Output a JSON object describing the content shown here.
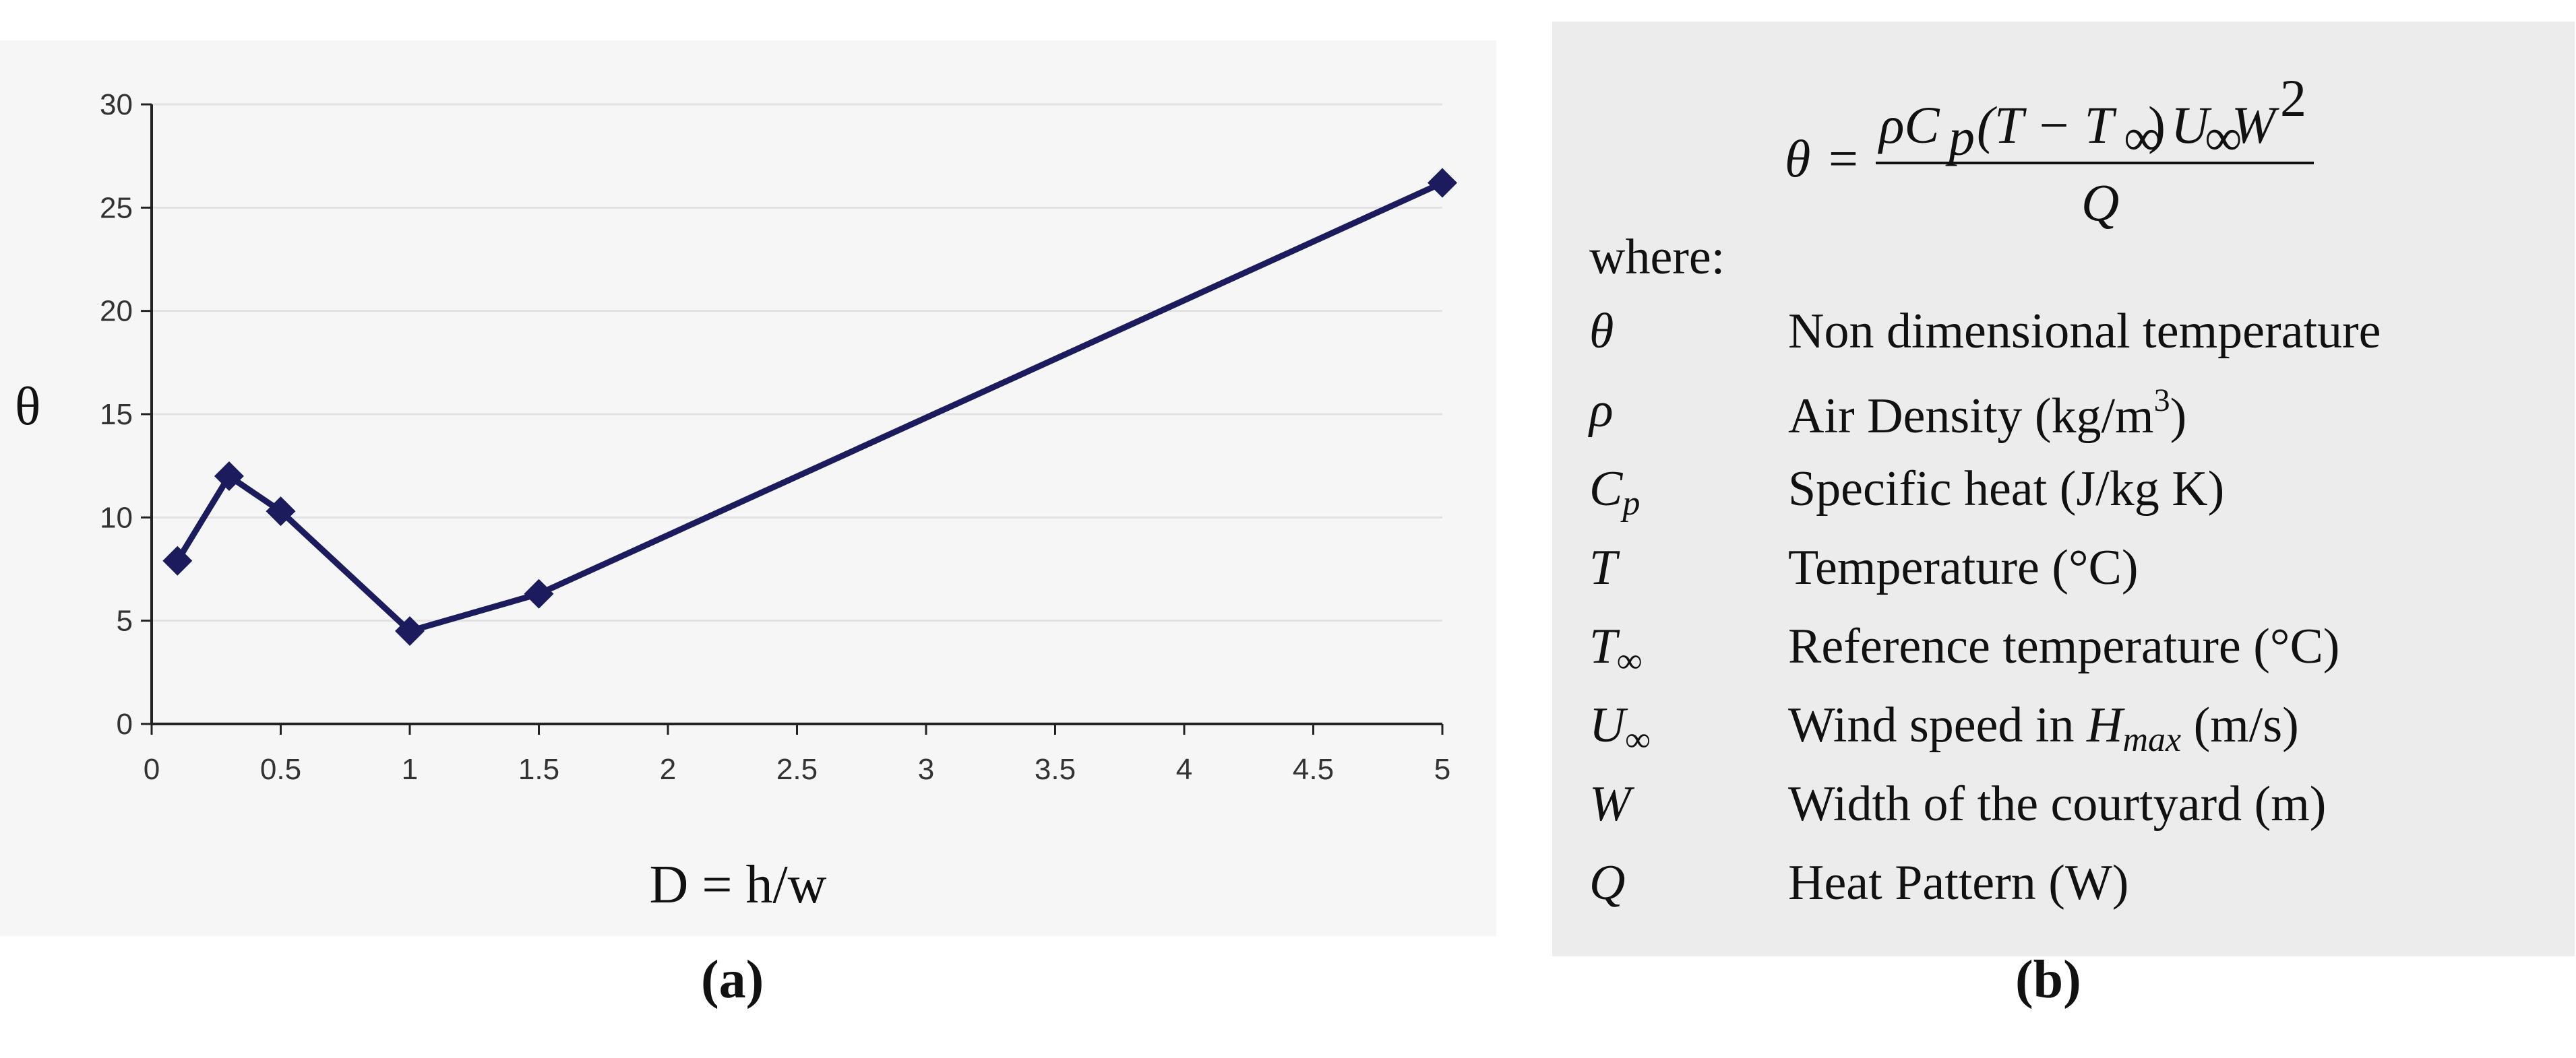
{
  "chart_data": {
    "type": "line",
    "x": [
      0.1,
      0.3,
      0.5,
      1,
      1.5,
      5
    ],
    "series": [
      {
        "values": [
          7.9,
          12.0,
          10.3,
          4.5,
          6.3,
          26.2
        ]
      }
    ],
    "xlabel": "D = h/w",
    "ylabel": "θ",
    "xticks": [
      "0",
      "0.5",
      "1",
      "1.5",
      "2",
      "2.5",
      "3",
      "3.5",
      "4",
      "4.5",
      "5"
    ],
    "yticks": [
      "0",
      "5",
      "10",
      "15",
      "20",
      "25",
      "30"
    ],
    "xlim": [
      0,
      5
    ],
    "ylim": [
      0,
      30
    ],
    "grid": "horizontal",
    "marker": "diamond",
    "line_color": "#1b1b5e",
    "legend": "none"
  },
  "captions": {
    "a": "a",
    "b": "b"
  },
  "legend": {
    "formula": {
      "lhs": "θ",
      "equals": "=",
      "numerator_rho_cp": "ρC",
      "numerator_p": "p",
      "numerator_paren": "(T − T",
      "inf": "∞",
      "numerator_u": "U",
      "numerator_w": "W",
      "sq": "2",
      "denominator": "Q"
    },
    "where": "where:",
    "rows": [
      {
        "symbol": "θ",
        "description": "Non dimensional temperature"
      },
      {
        "symbol": "ρ",
        "description": "Air Density (kg/m",
        "sup": "3",
        "after": ")"
      },
      {
        "symbol": "C",
        "sub": "p",
        "description": "Specific heat (J/kg K)"
      },
      {
        "symbol": "T",
        "description": "Temperature (°C)"
      },
      {
        "symbol": "T",
        "sub": "∞",
        "description": "Reference temperature (°C)"
      },
      {
        "symbol": "U",
        "sub": "∞",
        "description": "Wind speed in ",
        "desc_italic": "H",
        "desc_sub": "max",
        "after": " (m/s)"
      },
      {
        "symbol": "W",
        "description": "Width of the courtyard (m)"
      },
      {
        "symbol": "Q",
        "description": "Heat Pattern (W)"
      }
    ]
  },
  "colors": {
    "line": "#1b1b5e",
    "grid": "#e2e2e2",
    "axis": "#222222",
    "legend_bg": "#ececec"
  }
}
